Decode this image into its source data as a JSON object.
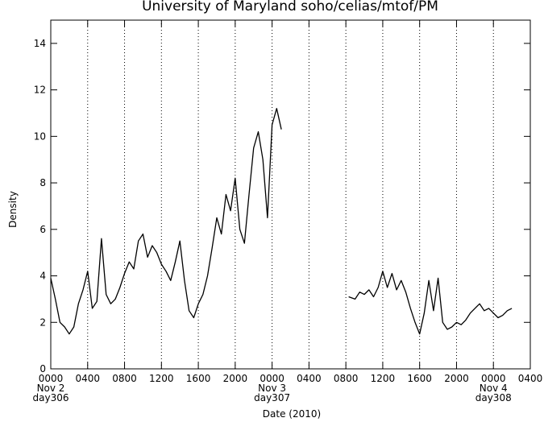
{
  "chart_data": {
    "type": "line",
    "title": "University of Maryland  soho/celias/mtof/PM",
    "x_label": "Date (2010)",
    "y_label": "Density",
    "color": "#000000",
    "x": [
      0,
      0.5,
      1,
      1.5,
      2,
      2.5,
      3,
      3.5,
      4,
      4.5,
      5,
      5.5,
      6,
      6.5,
      7,
      7.5,
      8,
      8.5,
      9,
      9.5,
      10,
      10.5,
      11,
      11.5,
      12,
      12.5,
      13,
      13.5,
      14,
      14.5,
      15,
      15.5,
      16,
      16.5,
      17,
      17.5,
      18,
      18.5,
      19,
      19.5,
      20,
      20.5,
      21,
      21.5,
      22,
      22.5,
      23,
      23.5,
      24,
      24.5,
      25,
      28,
      32.3,
      33,
      33.5,
      34,
      34.5,
      35,
      35.5,
      36,
      36.5,
      37,
      37.5,
      38,
      38.5,
      39,
      39.5,
      40,
      40.5,
      41,
      41.5,
      42,
      42.5,
      43,
      43.5,
      44,
      44.5,
      45,
      45.5,
      46,
      46.5,
      47,
      47.5,
      48,
      48.5,
      49,
      49.5,
      50
    ],
    "values": [
      3.9,
      3.0,
      2.0,
      1.8,
      1.5,
      1.8,
      2.8,
      3.4,
      4.2,
      2.6,
      2.9,
      5.6,
      3.2,
      2.8,
      3.0,
      3.5,
      4.1,
      4.6,
      4.3,
      5.5,
      5.8,
      4.8,
      5.3,
      5.0,
      4.5,
      4.2,
      3.8,
      4.6,
      5.5,
      3.8,
      2.5,
      2.2,
      2.8,
      3.2,
      4.0,
      5.2,
      6.5,
      5.8,
      7.5,
      6.8,
      8.2,
      6.0,
      5.4,
      7.5,
      9.5,
      10.2,
      9.0,
      6.5,
      10.5,
      11.2,
      10.3,
      null,
      3.1,
      3.0,
      3.3,
      3.2,
      3.4,
      3.1,
      3.5,
      4.2,
      3.5,
      4.1,
      3.4,
      3.8,
      3.3,
      2.6,
      2.0,
      1.5,
      2.4,
      3.8,
      2.5,
      3.9,
      2.0,
      1.7,
      1.8,
      2.0,
      1.9,
      2.1,
      2.4,
      2.6,
      2.8,
      2.5,
      2.6,
      2.4,
      2.2,
      2.3,
      2.5,
      2.6
    ],
    "xlim": [
      0,
      52
    ],
    "xticks": [
      {
        "value": 0,
        "label": "0000"
      },
      {
        "value": 4,
        "label": "0400"
      },
      {
        "value": 8,
        "label": "0800"
      },
      {
        "value": 12,
        "label": "1200"
      },
      {
        "value": 16,
        "label": "1600"
      },
      {
        "value": 20,
        "label": "2000"
      },
      {
        "value": 24,
        "label": "0000"
      },
      {
        "value": 28,
        "label": "0400"
      },
      {
        "value": 32,
        "label": "0800"
      },
      {
        "value": 36,
        "label": "1200"
      },
      {
        "value": 40,
        "label": "1600"
      },
      {
        "value": 44,
        "label": "2000"
      },
      {
        "value": 48,
        "label": "0000"
      },
      {
        "value": 52,
        "label": "0400"
      }
    ],
    "x_date_labels": [
      {
        "value": 0,
        "date": "Nov 2",
        "day": "day306"
      },
      {
        "value": 24,
        "date": "Nov 3",
        "day": "day307"
      },
      {
        "value": 48,
        "date": "Nov 4",
        "day": "day308"
      }
    ],
    "ylim": [
      0,
      15
    ],
    "yticks": [
      0,
      2,
      4,
      6,
      8,
      10,
      12,
      14
    ],
    "grid": true
  }
}
